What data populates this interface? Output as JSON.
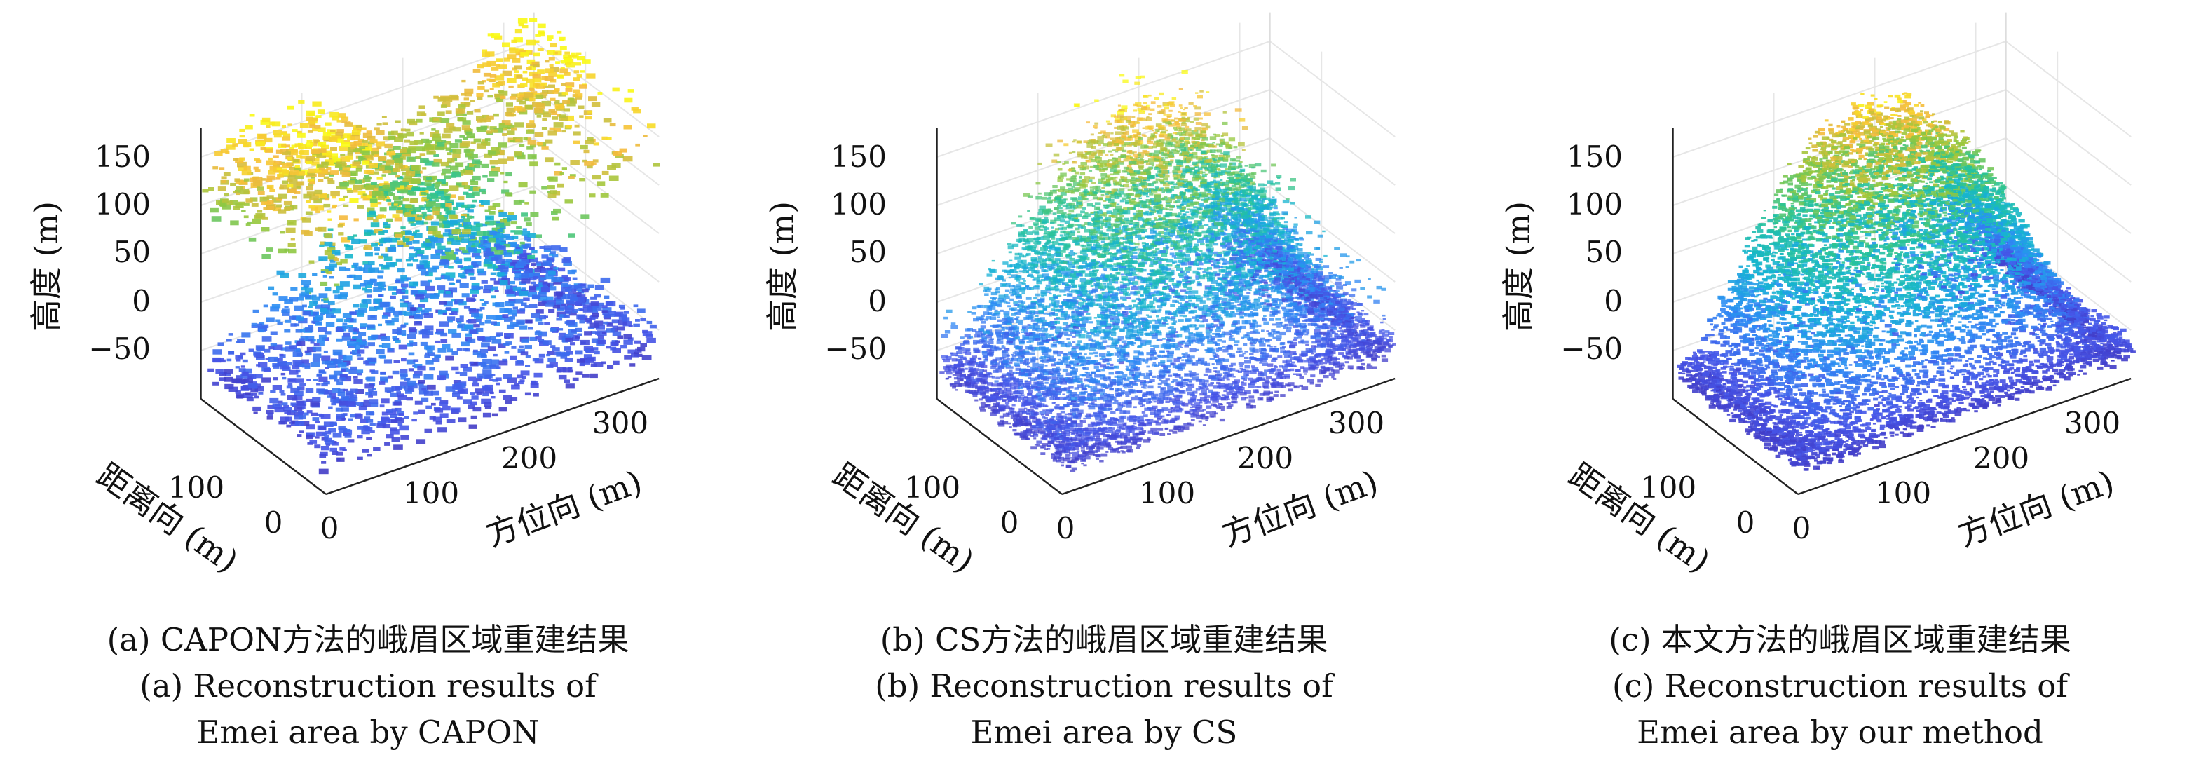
{
  "chart_data": [
    {
      "type": "scatter",
      "id": "a",
      "caption_cn": "(a) CAPON方法的峨眉区域重建结果",
      "caption_en_1": "(a) Reconstruction results of",
      "caption_en_2": "Emei area by CAPON",
      "zlabel": "高度 (m)",
      "ylabel": "距离向 (m)",
      "xlabel": "方位向 (m)",
      "z_ticks": [
        "150",
        "100",
        "50",
        "0",
        "−50"
      ],
      "y_ticks": [
        "100",
        "0"
      ],
      "x_ticks": [
        "0",
        "100",
        "200",
        "300"
      ],
      "zlim": [
        -100,
        180
      ],
      "colormap": "parula",
      "style": "sparse",
      "grid": true
    },
    {
      "type": "scatter",
      "id": "b",
      "caption_cn": "(b) CS方法的峨眉区域重建结果",
      "caption_en_1": "(b) Reconstruction results of",
      "caption_en_2": "Emei area by CS",
      "zlabel": "高度 (m)",
      "ylabel": "距离向 (m)",
      "xlabel": "方位向 (m)",
      "z_ticks": [
        "150",
        "100",
        "50",
        "0",
        "−50"
      ],
      "y_ticks": [
        "100",
        "0"
      ],
      "x_ticks": [
        "0",
        "100",
        "200",
        "300"
      ],
      "zlim": [
        -100,
        180
      ],
      "colormap": "parula",
      "style": "noisy",
      "grid": true
    },
    {
      "type": "scatter",
      "id": "c",
      "caption_cn": "(c) 本文方法的峨眉区域重建结果",
      "caption_en_1": "(c) Reconstruction results of",
      "caption_en_2": "Emei area by our method",
      "zlabel": "高度 (m)",
      "ylabel": "距离向 (m)",
      "xlabel": "方位向 (m)",
      "z_ticks": [
        "150",
        "100",
        "50",
        "0",
        "−50"
      ],
      "y_ticks": [
        "100",
        "0"
      ],
      "x_ticks": [
        "0",
        "100",
        "200",
        "300"
      ],
      "zlim": [
        -100,
        180
      ],
      "colormap": "parula",
      "style": "dense",
      "grid": true
    }
  ]
}
